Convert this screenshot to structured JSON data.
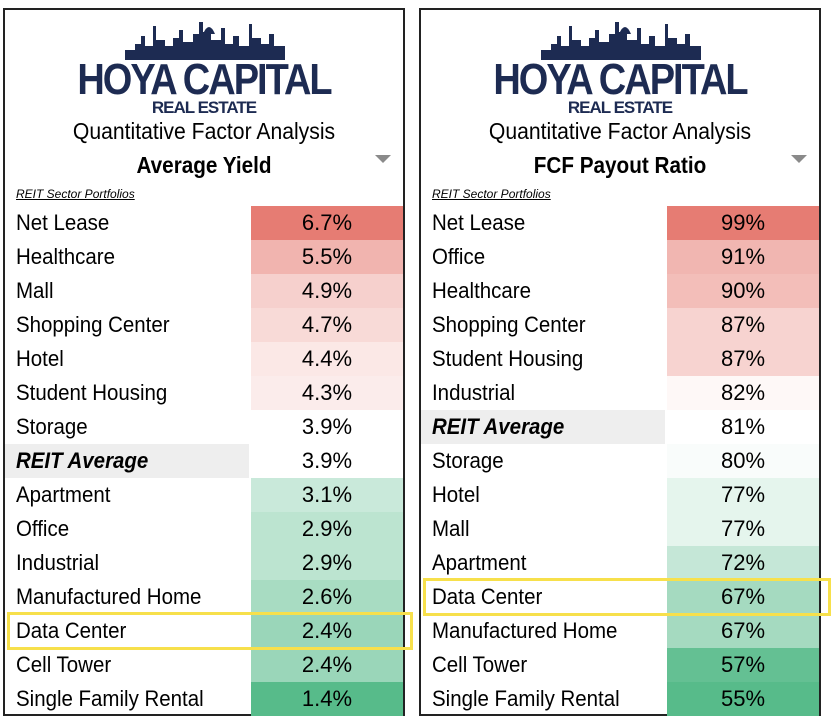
{
  "brand": {
    "name": "HOYA CAPITAL",
    "sub": "REAL ESTATE"
  },
  "colors": {
    "brand_navy": "#1d2b52",
    "high_red": "#e67c73",
    "mid_white": "#ffffff",
    "low_green": "#57bb8a",
    "highlight": "#f7e04b",
    "average_bg": "#eeeeee"
  },
  "chart_data": [
    {
      "type": "table",
      "subtitle": "Quantitative Factor Analysis",
      "metric": "Average Yield",
      "caption": "REIT Sector Portfolios",
      "highlighted": "Data Center",
      "rows": [
        {
          "label": "Net Lease",
          "display": "6.7%",
          "value": 6.7
        },
        {
          "label": "Healthcare",
          "display": "5.5%",
          "value": 5.5
        },
        {
          "label": "Mall",
          "display": "4.9%",
          "value": 4.9
        },
        {
          "label": "Shopping Center",
          "display": "4.7%",
          "value": 4.7
        },
        {
          "label": "Hotel",
          "display": "4.4%",
          "value": 4.4
        },
        {
          "label": "Student Housing",
          "display": "4.3%",
          "value": 4.3
        },
        {
          "label": "Storage",
          "display": "3.9%",
          "value": 3.9
        },
        {
          "label": "REIT Average",
          "display": "3.9%",
          "value": 3.9,
          "average": true
        },
        {
          "label": "Apartment",
          "display": "3.1%",
          "value": 3.1
        },
        {
          "label": "Office",
          "display": "2.9%",
          "value": 2.9
        },
        {
          "label": "Industrial",
          "display": "2.9%",
          "value": 2.9
        },
        {
          "label": "Manufactured Home",
          "display": "2.6%",
          "value": 2.6
        },
        {
          "label": "Data Center",
          "display": "2.4%",
          "value": 2.4
        },
        {
          "label": "Cell Tower",
          "display": "2.4%",
          "value": 2.4
        },
        {
          "label": "Single Family Rental",
          "display": "1.4%",
          "value": 1.4
        }
      ]
    },
    {
      "type": "table",
      "subtitle": "Quantitative Factor Analysis",
      "metric": "FCF Payout Ratio",
      "caption": "REIT Sector Portfolios",
      "highlighted": "Data Center",
      "rows": [
        {
          "label": "Net Lease",
          "display": "99%",
          "value": 99
        },
        {
          "label": "Office",
          "display": "91%",
          "value": 91
        },
        {
          "label": "Healthcare",
          "display": "90%",
          "value": 90
        },
        {
          "label": "Shopping Center",
          "display": "87%",
          "value": 87
        },
        {
          "label": "Student Housing",
          "display": "87%",
          "value": 87
        },
        {
          "label": "Industrial",
          "display": "82%",
          "value": 82
        },
        {
          "label": "REIT Average",
          "display": "81%",
          "value": 81,
          "average": true
        },
        {
          "label": "Storage",
          "display": "80%",
          "value": 80
        },
        {
          "label": "Hotel",
          "display": "77%",
          "value": 77
        },
        {
          "label": "Mall",
          "display": "77%",
          "value": 77
        },
        {
          "label": "Apartment",
          "display": "72%",
          "value": 72
        },
        {
          "label": "Data Center",
          "display": "67%",
          "value": 67
        },
        {
          "label": "Manufactured Home",
          "display": "67%",
          "value": 67
        },
        {
          "label": "Cell Tower",
          "display": "57%",
          "value": 57
        },
        {
          "label": "Single Family Rental",
          "display": "55%",
          "value": 55
        }
      ]
    }
  ]
}
